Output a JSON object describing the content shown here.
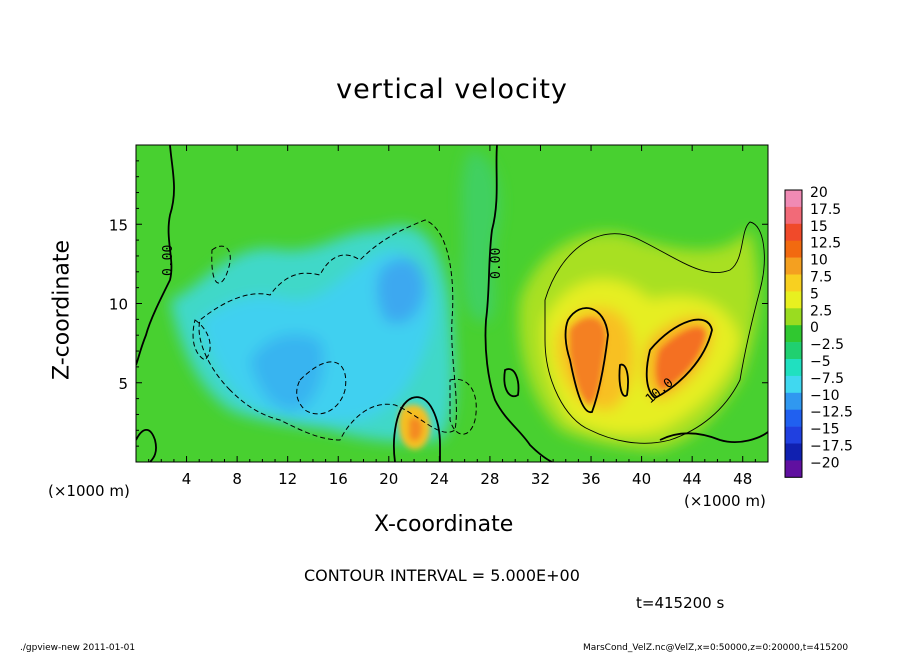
{
  "chart_data": {
    "type": "heatmap",
    "title": "vertical velocity",
    "xlabel": "X-coordinate",
    "ylabel": "Z-coordinate",
    "x_unit_label": "(×1000 m)",
    "y_unit_label": "(×1000 m)",
    "xlim": [
      0,
      50
    ],
    "ylim": [
      0,
      20
    ],
    "x_ticks": [
      4,
      8,
      12,
      16,
      20,
      24,
      28,
      32,
      36,
      40,
      44,
      48
    ],
    "y_ticks": [
      5,
      10,
      15
    ],
    "colorbar": {
      "labels": [
        "20",
        "17.5",
        "15",
        "12.5",
        "10",
        "7.5",
        "5",
        "2.5",
        "0",
        "−2.5",
        "−5",
        "−7.5",
        "−10",
        "−12.5",
        "−15",
        "−17.5",
        "−20"
      ],
      "values": [
        20,
        17.5,
        15,
        12.5,
        10,
        7.5,
        5,
        2.5,
        0,
        -2.5,
        -5,
        -7.5,
        -10,
        -12.5,
        -15,
        -17.5,
        -20
      ],
      "colors": [
        "#f08ab4",
        "#f26a78",
        "#f04a2a",
        "#f26a10",
        "#f4a020",
        "#f8d020",
        "#e8f020",
        "#9adc20",
        "#30c830",
        "#20d070",
        "#20e0c0",
        "#40d8f0",
        "#3098f0",
        "#2060f0",
        "#2040e0",
        "#1020b0",
        "#6010a0"
      ]
    },
    "contour_labels": [
      "0.00",
      "0.00",
      "10.0"
    ],
    "contour_interval": 5.0
  },
  "contour_interval_text": "CONTOUR INTERVAL = 5.000E+00",
  "time_text": "t=415200 s",
  "footer_left": "./gpview-new  2011-01-01",
  "footer_right": "MarsCond_VelZ.nc@VelZ,x=0:50000,z=0:20000,t=415200"
}
